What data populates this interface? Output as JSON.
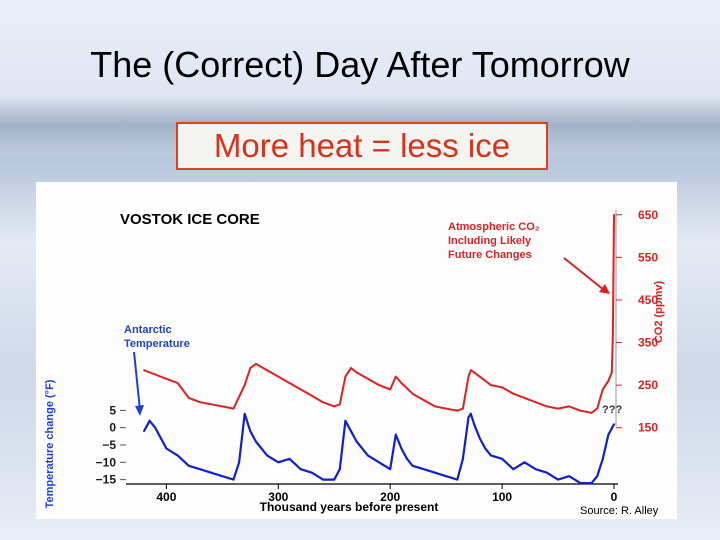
{
  "slide": {
    "title": "The (Correct) Day After Tomorrow",
    "subtitle": "More heat = less ice",
    "source": "Source: R. Alley"
  },
  "colors": {
    "co2": "#e02020",
    "temperature": "#1020d0",
    "subtitle_border": "#e0401a",
    "subtitle_text": "#d8331a"
  },
  "chart_data": {
    "type": "line",
    "title": "VOSTOK ICE CORE",
    "xlabel": "Thousand years before present",
    "x_reversed": true,
    "xlim": [
      420,
      0
    ],
    "x_ticks": [
      "400",
      "300",
      "200",
      "100",
      "0"
    ],
    "ylabel_left": "Temperature change (°F)",
    "ylim_left": [
      -18,
      8
    ],
    "left_ticks": [
      "5",
      "0",
      "−5",
      "−10",
      "−15"
    ],
    "ylabel_right": "CO2 (ppmv)",
    "ylim_right": [
      140,
      680
    ],
    "right_ticks": [
      "650",
      "550",
      "450",
      "350",
      "250",
      "150"
    ],
    "annotations": {
      "temperature": [
        "Antarctic",
        "Temperature"
      ],
      "co2": [
        "Atmospheric CO₂",
        "Including Likely",
        "Future Changes"
      ],
      "unknown": "???"
    },
    "series": [
      {
        "name": "Atmospheric CO₂",
        "axis": "right",
        "x": [
          420,
          410,
          400,
          390,
          380,
          370,
          360,
          350,
          340,
          330,
          325,
          320,
          310,
          300,
          290,
          280,
          270,
          260,
          250,
          245,
          240,
          235,
          230,
          220,
          210,
          200,
          195,
          190,
          180,
          170,
          160,
          150,
          140,
          135,
          130,
          128,
          125,
          120,
          110,
          100,
          90,
          80,
          70,
          60,
          50,
          40,
          30,
          20,
          15,
          10,
          5,
          2,
          1,
          0
        ],
        "y": [
          285,
          275,
          265,
          255,
          220,
          210,
          205,
          200,
          195,
          250,
          290,
          300,
          285,
          270,
          255,
          240,
          225,
          210,
          200,
          205,
          270,
          290,
          280,
          265,
          250,
          240,
          270,
          255,
          230,
          215,
          200,
          195,
          190,
          195,
          270,
          285,
          280,
          270,
          250,
          245,
          230,
          220,
          210,
          200,
          195,
          200,
          190,
          185,
          195,
          240,
          260,
          280,
          370,
          650
        ]
      },
      {
        "name": "Antarctic Temperature",
        "axis": "left",
        "x": [
          420,
          415,
          410,
          400,
          390,
          380,
          370,
          360,
          350,
          340,
          335,
          330,
          325,
          320,
          310,
          300,
          290,
          280,
          270,
          260,
          250,
          245,
          240,
          235,
          230,
          220,
          210,
          200,
          195,
          190,
          185,
          180,
          170,
          160,
          150,
          140,
          135,
          130,
          128,
          125,
          120,
          115,
          110,
          100,
          90,
          80,
          70,
          60,
          50,
          40,
          30,
          20,
          15,
          10,
          5,
          0
        ],
        "y": [
          -1,
          2,
          0,
          -6,
          -8,
          -11,
          -12,
          -13,
          -14,
          -15,
          -10,
          4,
          -1,
          -4,
          -8,
          -10,
          -9,
          -12,
          -13,
          -15,
          -15,
          -12,
          2,
          -1,
          -4,
          -8,
          -10,
          -12,
          -2,
          -6,
          -9,
          -11,
          -12,
          -13,
          -14,
          -15,
          -9,
          3,
          4,
          1,
          -3,
          -6,
          -8,
          -9,
          -12,
          -10,
          -12,
          -13,
          -15,
          -14,
          -16,
          -16,
          -14,
          -9,
          -2,
          1
        ]
      }
    ]
  }
}
